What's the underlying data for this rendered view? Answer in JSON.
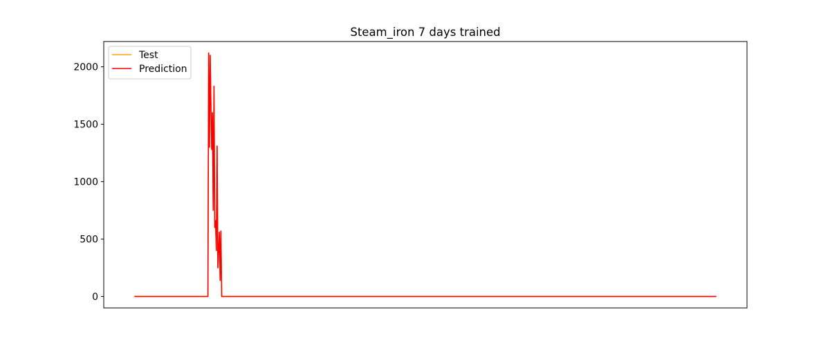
{
  "chart_data": {
    "type": "line",
    "title": "Steam_iron 7 days trained",
    "xlabel": "",
    "ylabel": "",
    "x_ticks_visible": false,
    "y_ticks": [
      0,
      500,
      1000,
      1500,
      2000
    ],
    "ylim": [
      -100,
      2220
    ],
    "xlim": [
      -40,
      800
    ],
    "legend": {
      "placement": "top-left"
    },
    "series": [
      {
        "name": "Test",
        "color": "#ffa500",
        "x": [
          0,
          96,
          97,
          98,
          99,
          100,
          101,
          102,
          103,
          104,
          105,
          106,
          107,
          108,
          109,
          110,
          111,
          112,
          113,
          114,
          760
        ],
        "y": [
          0,
          0,
          2120,
          1300,
          2100,
          1650,
          1280,
          1600,
          750,
          1830,
          600,
          660,
          400,
          1310,
          250,
          400,
          560,
          140,
          570,
          0,
          0
        ]
      },
      {
        "name": "Prediction",
        "color": "#ff0000",
        "x": [
          0,
          96,
          97,
          98,
          99,
          100,
          101,
          102,
          103,
          104,
          105,
          106,
          107,
          108,
          109,
          110,
          111,
          112,
          113,
          114,
          760
        ],
        "y": [
          0,
          0,
          2120,
          1300,
          2100,
          1650,
          1280,
          1600,
          750,
          1830,
          600,
          660,
          400,
          1310,
          250,
          400,
          560,
          140,
          570,
          0,
          0
        ]
      }
    ]
  }
}
